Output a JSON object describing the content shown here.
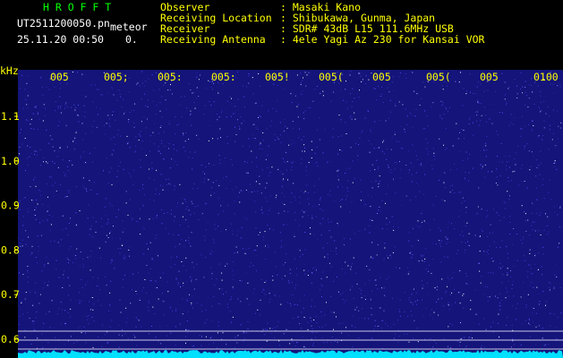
{
  "header": {
    "app_name": "H R O F F T",
    "file_name": "UT2511200050.pn",
    "mode": "meteor",
    "datetime": "25.11.20 00:50",
    "count": "0.",
    "info": [
      {
        "label": "Observer",
        "value": ": Masaki Kano"
      },
      {
        "label": "Receiving Location",
        "value": ": Shibukawa, Gunma, Japan"
      },
      {
        "label": "Receiver",
        "value": ": SDR# 43dB L15 111.6MHz USB"
      },
      {
        "label": "Receiving Antenna",
        "value": ": 4ele Yagi Az 230 for Kansai VOR"
      }
    ]
  },
  "frequency_axis": {
    "unit": "kHz",
    "labels": [
      "1.1",
      "1.0",
      "0.9",
      "0.8",
      "0.7",
      "0.6"
    ]
  },
  "time_axis": {
    "labels": [
      "005",
      "005;",
      "005:",
      "005:",
      "005!",
      "005(",
      "005",
      "005(",
      "005",
      "0100"
    ]
  }
}
